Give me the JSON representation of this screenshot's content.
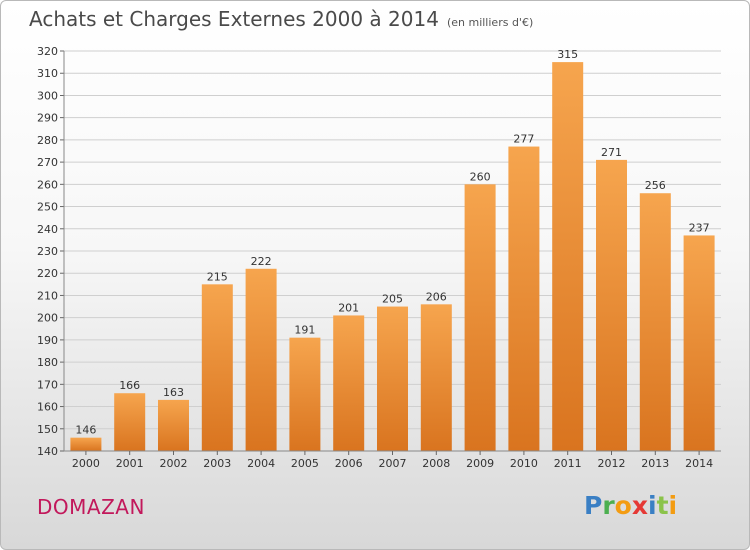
{
  "title": "Achats et Charges Externes 2000 à 2014",
  "subtitle": "(en milliers d'€)",
  "place": "DOMAZAN",
  "logo": {
    "text": "Proxiti",
    "letters": [
      {
        "ch": "P",
        "color": "#3a7fc4"
      },
      {
        "ch": "r",
        "color": "#4caf50"
      },
      {
        "ch": "o",
        "color": "#f39c12"
      },
      {
        "ch": "x",
        "color": "#e53935"
      },
      {
        "ch": "i",
        "color": "#3a7fc4"
      },
      {
        "ch": "t",
        "color": "#8bc34a"
      },
      {
        "ch": "i",
        "color": "#f39c12"
      }
    ]
  },
  "colors": {
    "bar_top": "#f6a54e",
    "bar_bottom": "#d9741f",
    "grid": "#cfcfcf",
    "axis_text": "#333333",
    "title_color": "#4a4a4a",
    "place_color": "#c2185b"
  },
  "chart_data": {
    "type": "bar",
    "title": "Achats et Charges Externes 2000 à 2014",
    "subtitle": "(en milliers d'€)",
    "categories": [
      "2000",
      "2001",
      "2002",
      "2003",
      "2004",
      "2005",
      "2006",
      "2007",
      "2008",
      "2009",
      "2010",
      "2011",
      "2012",
      "2013",
      "2014"
    ],
    "values": [
      146,
      166,
      163,
      215,
      222,
      191,
      201,
      205,
      206,
      260,
      277,
      315,
      271,
      256,
      237
    ],
    "ylim": [
      140,
      320
    ],
    "yticks": [
      140,
      150,
      160,
      170,
      180,
      190,
      200,
      210,
      220,
      230,
      240,
      250,
      260,
      270,
      280,
      290,
      300,
      310,
      320
    ],
    "grid": true,
    "data_labels": true
  }
}
